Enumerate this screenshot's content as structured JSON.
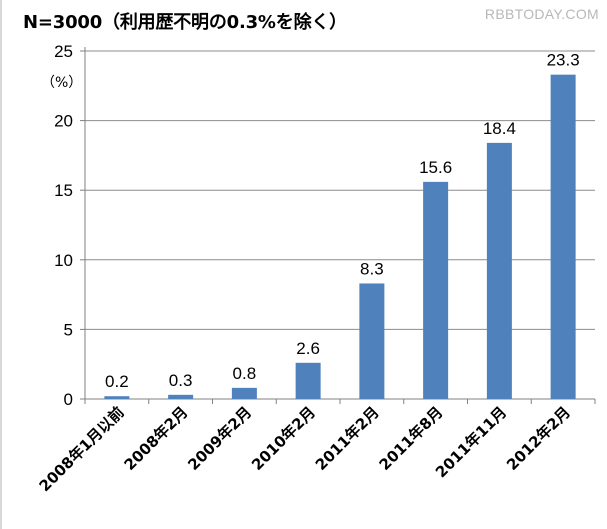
{
  "watermark": "RBBTODAY.COM",
  "chart_data": {
    "type": "bar",
    "title": "N=3000（利用歴不明の0.3%を除く）",
    "ylabel": "（%）",
    "xlabel": "",
    "categories": [
      "2008年1月以前",
      "2008年2月",
      "2009年2月",
      "2010年2月",
      "2011年2月",
      "2011年8月",
      "2011年11月",
      "2012年2月"
    ],
    "values": [
      0.2,
      0.3,
      0.8,
      2.6,
      8.3,
      15.6,
      18.4,
      23.3
    ],
    "data_labels": [
      "0.2",
      "0.3",
      "0.8",
      "2.6",
      "8.3",
      "15.6",
      "18.4",
      "23.3"
    ],
    "ylim": [
      0,
      25
    ],
    "yticks": [
      0,
      5,
      10,
      15,
      20,
      25
    ],
    "grid": true,
    "bar_color": "#4f81bd",
    "grid_color": "#8c8c8c"
  }
}
